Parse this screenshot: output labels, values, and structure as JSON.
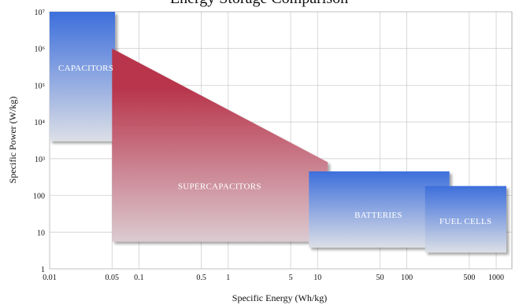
{
  "chart_data": {
    "type": "area",
    "title": "Energy Storage Comparison",
    "xlabel": "Specific Energy (Wh/kg)",
    "ylabel": "Specific Power (W/kg)",
    "x_scale": "log",
    "y_scale": "log",
    "xlim": [
      0.01,
      1500
    ],
    "ylim": [
      1,
      10000000
    ],
    "grid": true,
    "x_ticks": [
      {
        "value": 0.01,
        "label": "0.01"
      },
      {
        "value": 0.05,
        "label": "0.05"
      },
      {
        "value": 0.1,
        "label": "0.1"
      },
      {
        "value": 0.5,
        "label": "0.5"
      },
      {
        "value": 1,
        "label": "1"
      },
      {
        "value": 5,
        "label": "5"
      },
      {
        "value": 10,
        "label": "10"
      },
      {
        "value": 50,
        "label": "50"
      },
      {
        "value": 100,
        "label": "100"
      },
      {
        "value": 500,
        "label": "500"
      },
      {
        "value": 1000,
        "label": "1000"
      }
    ],
    "y_ticks": [
      {
        "value": 1,
        "label": "1"
      },
      {
        "value": 10,
        "label": "10"
      },
      {
        "value": 100,
        "label": "100"
      },
      {
        "value": 1000,
        "label": "10³"
      },
      {
        "value": 10000,
        "label": "10⁴"
      },
      {
        "value": 100000,
        "label": "10⁵"
      },
      {
        "value": 1000000,
        "label": "10⁶"
      },
      {
        "value": 10000000,
        "label": "10⁷"
      }
    ],
    "regions": [
      {
        "name": "CAPACITORS",
        "shape": "rect",
        "x": [
          0.01,
          0.054
        ],
        "y": [
          3000,
          10000000
        ],
        "label_at": [
          0.0255,
          300000
        ],
        "colors": [
          "#3d6fdc",
          "#dcdfe6"
        ]
      },
      {
        "name": "SUPERCAPACITORS",
        "shape": "polygon",
        "points": [
          [
            0.05,
            5.5
          ],
          [
            0.05,
            1000000
          ],
          [
            13,
            800
          ],
          [
            13,
            5.5
          ]
        ],
        "label_at": [
          0.8,
          180
        ],
        "colors": [
          "#b8344b",
          "#dccbd1"
        ]
      },
      {
        "name": "BATTERIES",
        "shape": "rect",
        "x": [
          8,
          300
        ],
        "y": [
          3.8,
          450
        ],
        "label_at": [
          48,
          30
        ],
        "colors": [
          "#3d6fdc",
          "#dcdfe6"
        ]
      },
      {
        "name": "FUEL CELLS",
        "shape": "rect",
        "x": [
          160,
          1300
        ],
        "y": [
          2.8,
          180
        ],
        "label_at": [
          455,
          20
        ],
        "colors": [
          "#3d6fdc",
          "#dcdfe6"
        ]
      }
    ]
  }
}
